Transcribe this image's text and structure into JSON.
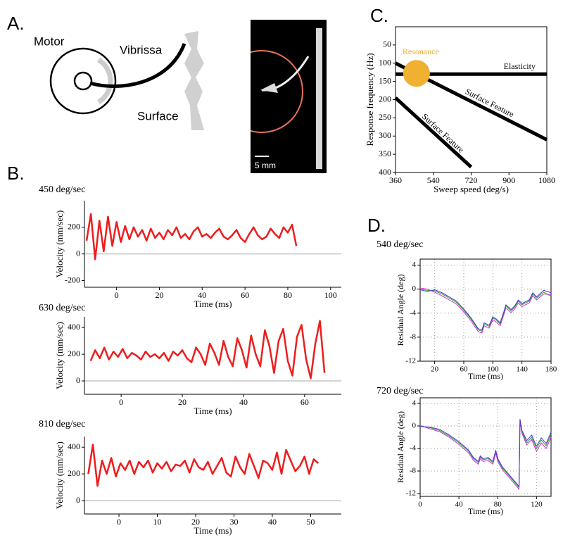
{
  "panel_labels": [
    "A.",
    "B.",
    "C.",
    "D."
  ],
  "diagram": {
    "motor": "Motor",
    "vibrissa": "Vibrissa",
    "surface": "Surface",
    "scale": "5 mm"
  },
  "chart_data": [
    {
      "type": "line",
      "xlabel": "Sweep speed (deg/s)",
      "ylabel": "Response frequency (Hz)",
      "xlim": [
        360,
        1080
      ],
      "xticks": [
        360,
        540,
        720,
        900,
        1080
      ],
      "ylim": [
        400,
        0
      ],
      "yticks": [
        50,
        100,
        150,
        200,
        250,
        300,
        350,
        400
      ],
      "series": [
        {
          "name": "Elasticity",
          "color": "#000000",
          "x": [
            360,
            1080
          ],
          "values": [
            130,
            130
          ]
        },
        {
          "name": "Surface Feature",
          "color": "#000000",
          "x": [
            360,
            1080
          ],
          "values": [
            100,
            310
          ]
        },
        {
          "name": "Surface Feature",
          "color": "#000000",
          "x": [
            360,
            720
          ],
          "values": [
            195,
            385
          ]
        }
      ],
      "resonance": {
        "name": "Resonance",
        "x": 460,
        "y": 128,
        "color": "#f0b030"
      }
    },
    {
      "type": "line",
      "title": "450 deg/sec",
      "xlabel": "Time (ms)",
      "ylabel": "Velocity (mm/sec)",
      "xlim": [
        -15,
        105
      ],
      "xticks": [
        0,
        20,
        40,
        60,
        80,
        100
      ],
      "ylim": [
        -250,
        400
      ],
      "yticks": [
        -200,
        0,
        200
      ],
      "zero_line": true,
      "grid": false,
      "x": [
        -14,
        -12,
        -10,
        -8,
        -6,
        -4,
        -2,
        0,
        2,
        4,
        6,
        8,
        10,
        12,
        14,
        16,
        18,
        20,
        22,
        24,
        26,
        28,
        30,
        32,
        34,
        36,
        38,
        40,
        42,
        44,
        46,
        48,
        50,
        52,
        54,
        56,
        58,
        60,
        62,
        64,
        66,
        68,
        70,
        72,
        74,
        76,
        78,
        80,
        82,
        84
      ],
      "series": [
        {
          "color": "#ee1c1c",
          "values": [
            100,
            300,
            -40,
            250,
            20,
            280,
            60,
            240,
            90,
            210,
            110,
            200,
            130,
            180,
            100,
            190,
            120,
            160,
            110,
            180,
            140,
            200,
            120,
            150,
            110,
            170,
            200,
            130,
            150,
            120,
            160,
            190,
            130,
            110,
            140,
            180,
            120,
            90,
            150,
            200,
            140,
            110,
            130,
            190,
            150,
            120,
            200,
            160,
            220,
            60
          ]
        }
      ]
    },
    {
      "type": "line",
      "title": "630 deg/sec",
      "xlabel": "Time (ms)",
      "ylabel": "Velocity (mm/sec)",
      "xlim": [
        -12,
        72
      ],
      "xticks": [
        0,
        20,
        40,
        60
      ],
      "ylim": [
        -100,
        480
      ],
      "yticks": [
        0,
        200,
        400
      ],
      "zero_line": true,
      "grid": false,
      "x": [
        -10,
        -8.5,
        -7,
        -5.5,
        -4,
        -2.5,
        -1,
        0.5,
        2,
        3.5,
        5,
        6.5,
        8,
        9.5,
        11,
        12.5,
        14,
        15.5,
        17,
        18.5,
        20,
        21.5,
        23,
        24.5,
        26,
        27.5,
        29,
        30.5,
        32,
        33.5,
        35,
        36.5,
        38,
        39.5,
        41,
        42.5,
        44,
        45.5,
        47,
        48.5,
        50,
        51.5,
        53,
        54.5,
        56,
        57.5,
        59,
        60.5,
        62,
        63.5,
        65,
        66.5
      ],
      "series": [
        {
          "color": "#ee1c1c",
          "values": [
            150,
            230,
            170,
            250,
            160,
            220,
            180,
            240,
            170,
            210,
            190,
            160,
            220,
            180,
            200,
            170,
            210,
            150,
            220,
            190,
            230,
            170,
            140,
            250,
            200,
            120,
            280,
            210,
            120,
            300,
            180,
            110,
            320,
            230,
            100,
            340,
            200,
            110,
            380,
            260,
            60,
            300,
            390,
            150,
            40,
            330,
            420,
            160,
            20,
            280,
            450,
            60
          ]
        }
      ]
    },
    {
      "type": "line",
      "title": "810 deg/sec",
      "xlabel": "Time (ms)",
      "ylabel": "Velocity (mm/sec)",
      "xlim": [
        -9,
        58
      ],
      "xticks": [
        0,
        10,
        20,
        30,
        40,
        50
      ],
      "ylim": [
        -100,
        480
      ],
      "yticks": [
        0,
        200,
        400
      ],
      "zero_line": true,
      "grid": false,
      "x": [
        -8,
        -6.8,
        -5.6,
        -4.4,
        -3.2,
        -2,
        -0.8,
        0.4,
        1.6,
        2.8,
        4,
        5.2,
        6.4,
        7.6,
        8.8,
        10,
        11.2,
        12.4,
        13.6,
        14.8,
        16,
        17.2,
        18.4,
        19.6,
        20.8,
        22,
        23.2,
        24.4,
        25.6,
        26.8,
        28,
        29.2,
        30.4,
        31.6,
        32.8,
        34,
        35.2,
        36.4,
        37.6,
        38.8,
        40,
        41.2,
        42.4,
        43.6,
        44.8,
        46,
        47.2,
        48.4,
        49.6,
        50.8,
        52
      ],
      "series": [
        {
          "color": "#ee1c1c",
          "values": [
            200,
            420,
            110,
            300,
            200,
            320,
            180,
            280,
            230,
            300,
            200,
            290,
            250,
            300,
            210,
            280,
            240,
            290,
            220,
            270,
            260,
            300,
            210,
            310,
            250,
            230,
            290,
            200,
            260,
            320,
            210,
            180,
            330,
            250,
            200,
            350,
            260,
            170,
            300,
            280,
            230,
            360,
            200,
            380,
            300,
            220,
            260,
            330,
            200,
            310,
            280
          ]
        }
      ]
    },
    {
      "type": "line",
      "title": "540 deg/sec",
      "xlabel": "Time (ms)",
      "ylabel": "Residual Angle (deg)",
      "xlim": [
        0,
        180
      ],
      "xticks": [
        20,
        60,
        100,
        140,
        180
      ],
      "ylim": [
        -12,
        5
      ],
      "yticks": [
        -12,
        -8,
        -4,
        0,
        4
      ],
      "grid": true,
      "x": [
        0,
        10,
        20,
        30,
        40,
        50,
        60,
        70,
        80,
        85,
        88,
        95,
        100,
        105,
        110,
        115,
        118,
        125,
        130,
        135,
        140,
        150,
        155,
        160,
        170,
        180
      ],
      "series": [
        {
          "color": "#2ca02c",
          "values": [
            0,
            -0.2,
            -0.3,
            -0.8,
            -1.5,
            -2.2,
            -3.5,
            -5,
            -6.8,
            -7,
            -5.8,
            -6.2,
            -4.8,
            -5.2,
            -5.8,
            -4,
            -2.8,
            -3.6,
            -3,
            -2,
            -2.6,
            -2,
            -0.8,
            -1.5,
            -0.5,
            -1.2
          ]
        },
        {
          "color": "#d62ad6",
          "values": [
            0.2,
            0,
            -0.5,
            -1.1,
            -1.8,
            -2.5,
            -3.8,
            -5.3,
            -7.1,
            -7.3,
            -6.1,
            -6.5,
            -5.1,
            -5.5,
            -6.1,
            -4.3,
            -3.1,
            -3.9,
            -3.3,
            -2.3,
            -2.9,
            -2.3,
            -1.1,
            -1.8,
            -0.8,
            -0.9
          ]
        },
        {
          "color": "#3b3bd1",
          "values": [
            -0.1,
            -0.4,
            -0.1,
            -0.6,
            -1.3,
            -2,
            -3.3,
            -4.8,
            -6.6,
            -6.8,
            -5.6,
            -6,
            -4.6,
            -5,
            -5.6,
            -3.8,
            -2.6,
            -3.4,
            -2.8,
            -1.8,
            -2.4,
            -1.8,
            -0.6,
            -1.3,
            -0.2,
            -0.6
          ]
        }
      ]
    },
    {
      "type": "line",
      "title": "720 deg/sec",
      "xlabel": "Time (ms)",
      "ylabel": "Residual Angle (deg)",
      "xlim": [
        0,
        135
      ],
      "xticks": [
        0,
        40,
        80,
        120
      ],
      "ylim": [
        -12.5,
        5
      ],
      "yticks": [
        -12,
        -8,
        -4,
        0,
        4
      ],
      "grid": true,
      "x": [
        0,
        10,
        20,
        30,
        40,
        50,
        55,
        60,
        62,
        65,
        70,
        75,
        78,
        80,
        85,
        90,
        95,
        100,
        102,
        103,
        105,
        110,
        115,
        120,
        125,
        130,
        135
      ],
      "series": [
        {
          "color": "#2ca02c",
          "values": [
            0,
            -0.3,
            -0.8,
            -1.8,
            -3,
            -4.5,
            -5.8,
            -6.5,
            -5.5,
            -6,
            -5.8,
            -6.5,
            -4.5,
            -6,
            -7.5,
            -8.5,
            -9.5,
            -10.5,
            -11,
            1,
            -1,
            -3,
            -2,
            -4,
            -2.5,
            -3.5,
            -1.5
          ]
        },
        {
          "color": "#d62ad6",
          "values": [
            0.1,
            -0.5,
            -1,
            -2,
            -3.3,
            -4.8,
            -6.1,
            -6.8,
            -5.8,
            -6.3,
            -6.1,
            -6.8,
            -4.8,
            -6.3,
            -7.8,
            -8.8,
            -9.8,
            -10.8,
            -11.3,
            0.8,
            -1.3,
            -3.4,
            -2.4,
            -4.5,
            -3,
            -4,
            -2
          ]
        },
        {
          "color": "#3b3bd1",
          "values": [
            -0.1,
            -0.2,
            -0.6,
            -1.6,
            -2.8,
            -4.3,
            -5.6,
            -6.3,
            -5.3,
            -5.8,
            -5.6,
            -6.3,
            -4.3,
            -5.8,
            -7.3,
            -8.3,
            -9.3,
            -10.3,
            -10.8,
            1.2,
            -0.8,
            -2.6,
            -1.6,
            -3.6,
            -2.1,
            -3.1,
            -1.1
          ]
        }
      ]
    }
  ]
}
